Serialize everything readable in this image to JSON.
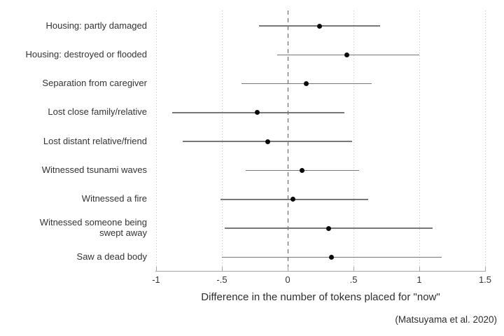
{
  "chart_data": {
    "type": "forest",
    "title": "",
    "xlabel": "Difference in the number of tokens placed for \"now\"",
    "source": "(Matsuyama et al. 2020)",
    "xlim": [
      -1,
      1.5
    ],
    "zero_line": 0,
    "grid": "dotted-vertical-gridlines-at-each-tick",
    "legend": "none",
    "x_ticks": [
      {
        "value": -1,
        "label": "-1"
      },
      {
        "value": -0.5,
        "label": "-.5"
      },
      {
        "value": 0,
        "label": "0"
      },
      {
        "value": 0.5,
        "label": ".5"
      },
      {
        "value": 1,
        "label": "1"
      },
      {
        "value": 1.5,
        "label": "1.5"
      }
    ],
    "rows": [
      {
        "category": "Housing: partly damaged",
        "estimate": 0.24,
        "ci_low": -0.22,
        "ci_high": 0.7
      },
      {
        "category": "Housing: destroyed or flooded",
        "estimate": 0.45,
        "ci_low": -0.08,
        "ci_high": 1.0
      },
      {
        "category": "Separation from caregiver",
        "estimate": 0.14,
        "ci_low": -0.35,
        "ci_high": 0.64
      },
      {
        "category": "Lost close family/relative",
        "estimate": -0.23,
        "ci_low": -0.88,
        "ci_high": 0.43
      },
      {
        "category": "Lost distant relative/friend",
        "estimate": -0.15,
        "ci_low": -0.8,
        "ci_high": 0.49
      },
      {
        "category": "Witnessed tsunami waves",
        "estimate": 0.11,
        "ci_low": -0.32,
        "ci_high": 0.54
      },
      {
        "category": "Witnessed a fire",
        "estimate": 0.04,
        "ci_low": -0.51,
        "ci_high": 0.61
      },
      {
        "category": "Witnessed someone being swept away",
        "estimate": 0.31,
        "ci_low": -0.48,
        "ci_high": 1.1,
        "label_lines": [
          "Witnessed someone being",
          "swept away"
        ]
      },
      {
        "category": "Saw a dead body",
        "estimate": 0.33,
        "ci_low": -0.5,
        "ci_high": 1.17
      }
    ],
    "colors": {
      "point": "#0a0a0a",
      "ci_line": "#777777",
      "gridline": "#cfcfcf",
      "zero_line": "#5a5a5a",
      "axis": "#a6a6a6",
      "text": "#333333"
    }
  }
}
